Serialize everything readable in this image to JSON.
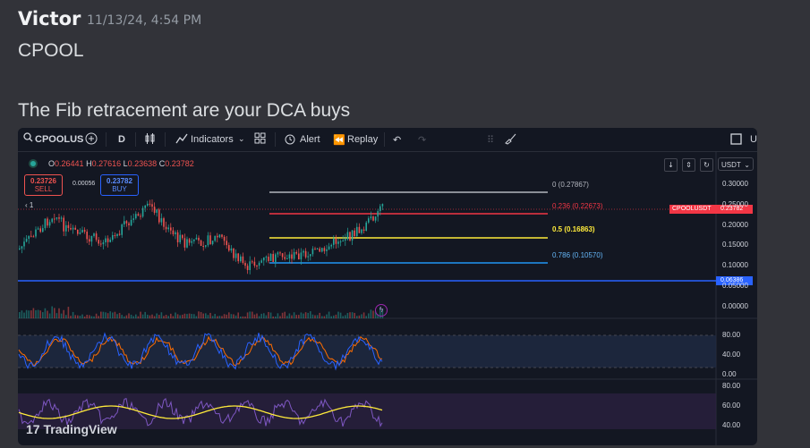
{
  "message": {
    "author": "Victor",
    "timestamp": "11/13/24, 4:54 PM",
    "line1": "CPOOL",
    "line2": "The Fib retracement are your DCA buys"
  },
  "toolbar": {
    "symbol": "CPOOLUS",
    "interval": "D",
    "indicators": "Indicators",
    "alert": "Alert",
    "replay": "Replay",
    "cut": "U"
  },
  "ohlc": {
    "o_label": "O",
    "o": "0.26441",
    "h_label": "H",
    "h": "0.27616",
    "l_label": "L",
    "l": "0.23638",
    "c_label": "C",
    "c": "0.23782"
  },
  "trade": {
    "sell_price": "0.23726",
    "sell_label": "SELL",
    "spread": "0.00056",
    "buy_price": "0.23782",
    "buy_label": "BUY"
  },
  "legend_count": "1",
  "currency": "USDT",
  "price_axis": [
    "0.30000",
    "0.25000",
    "0.20000",
    "0.15000",
    "0.10000",
    "0.05000",
    "0.00000"
  ],
  "current_symbol_tag": "CPOOLUSDT",
  "current_price_tag": "0.23782",
  "line_price_tag": "0.06386",
  "fib": [
    {
      "label": "0 (0.27867)",
      "color": "#b2b5be"
    },
    {
      "label": "0.236 (0.22673)",
      "color": "#f23645"
    },
    {
      "label": "0.5 (0.16863)",
      "color": "#ffeb3b"
    },
    {
      "label": "0.786 (0.10570)",
      "color": "#2196f3"
    }
  ],
  "rsi_axis": [
    "80.00",
    "40.00",
    "0.00"
  ],
  "osc2_axis": [
    "80.00",
    "60.00",
    "40.00"
  ],
  "logo": "TradingView",
  "colors": {
    "up": "#26a69a",
    "down": "#ef5350",
    "blue": "#2962ff",
    "stoch_k": "#2962ff",
    "stoch_d": "#ff6d00"
  }
}
